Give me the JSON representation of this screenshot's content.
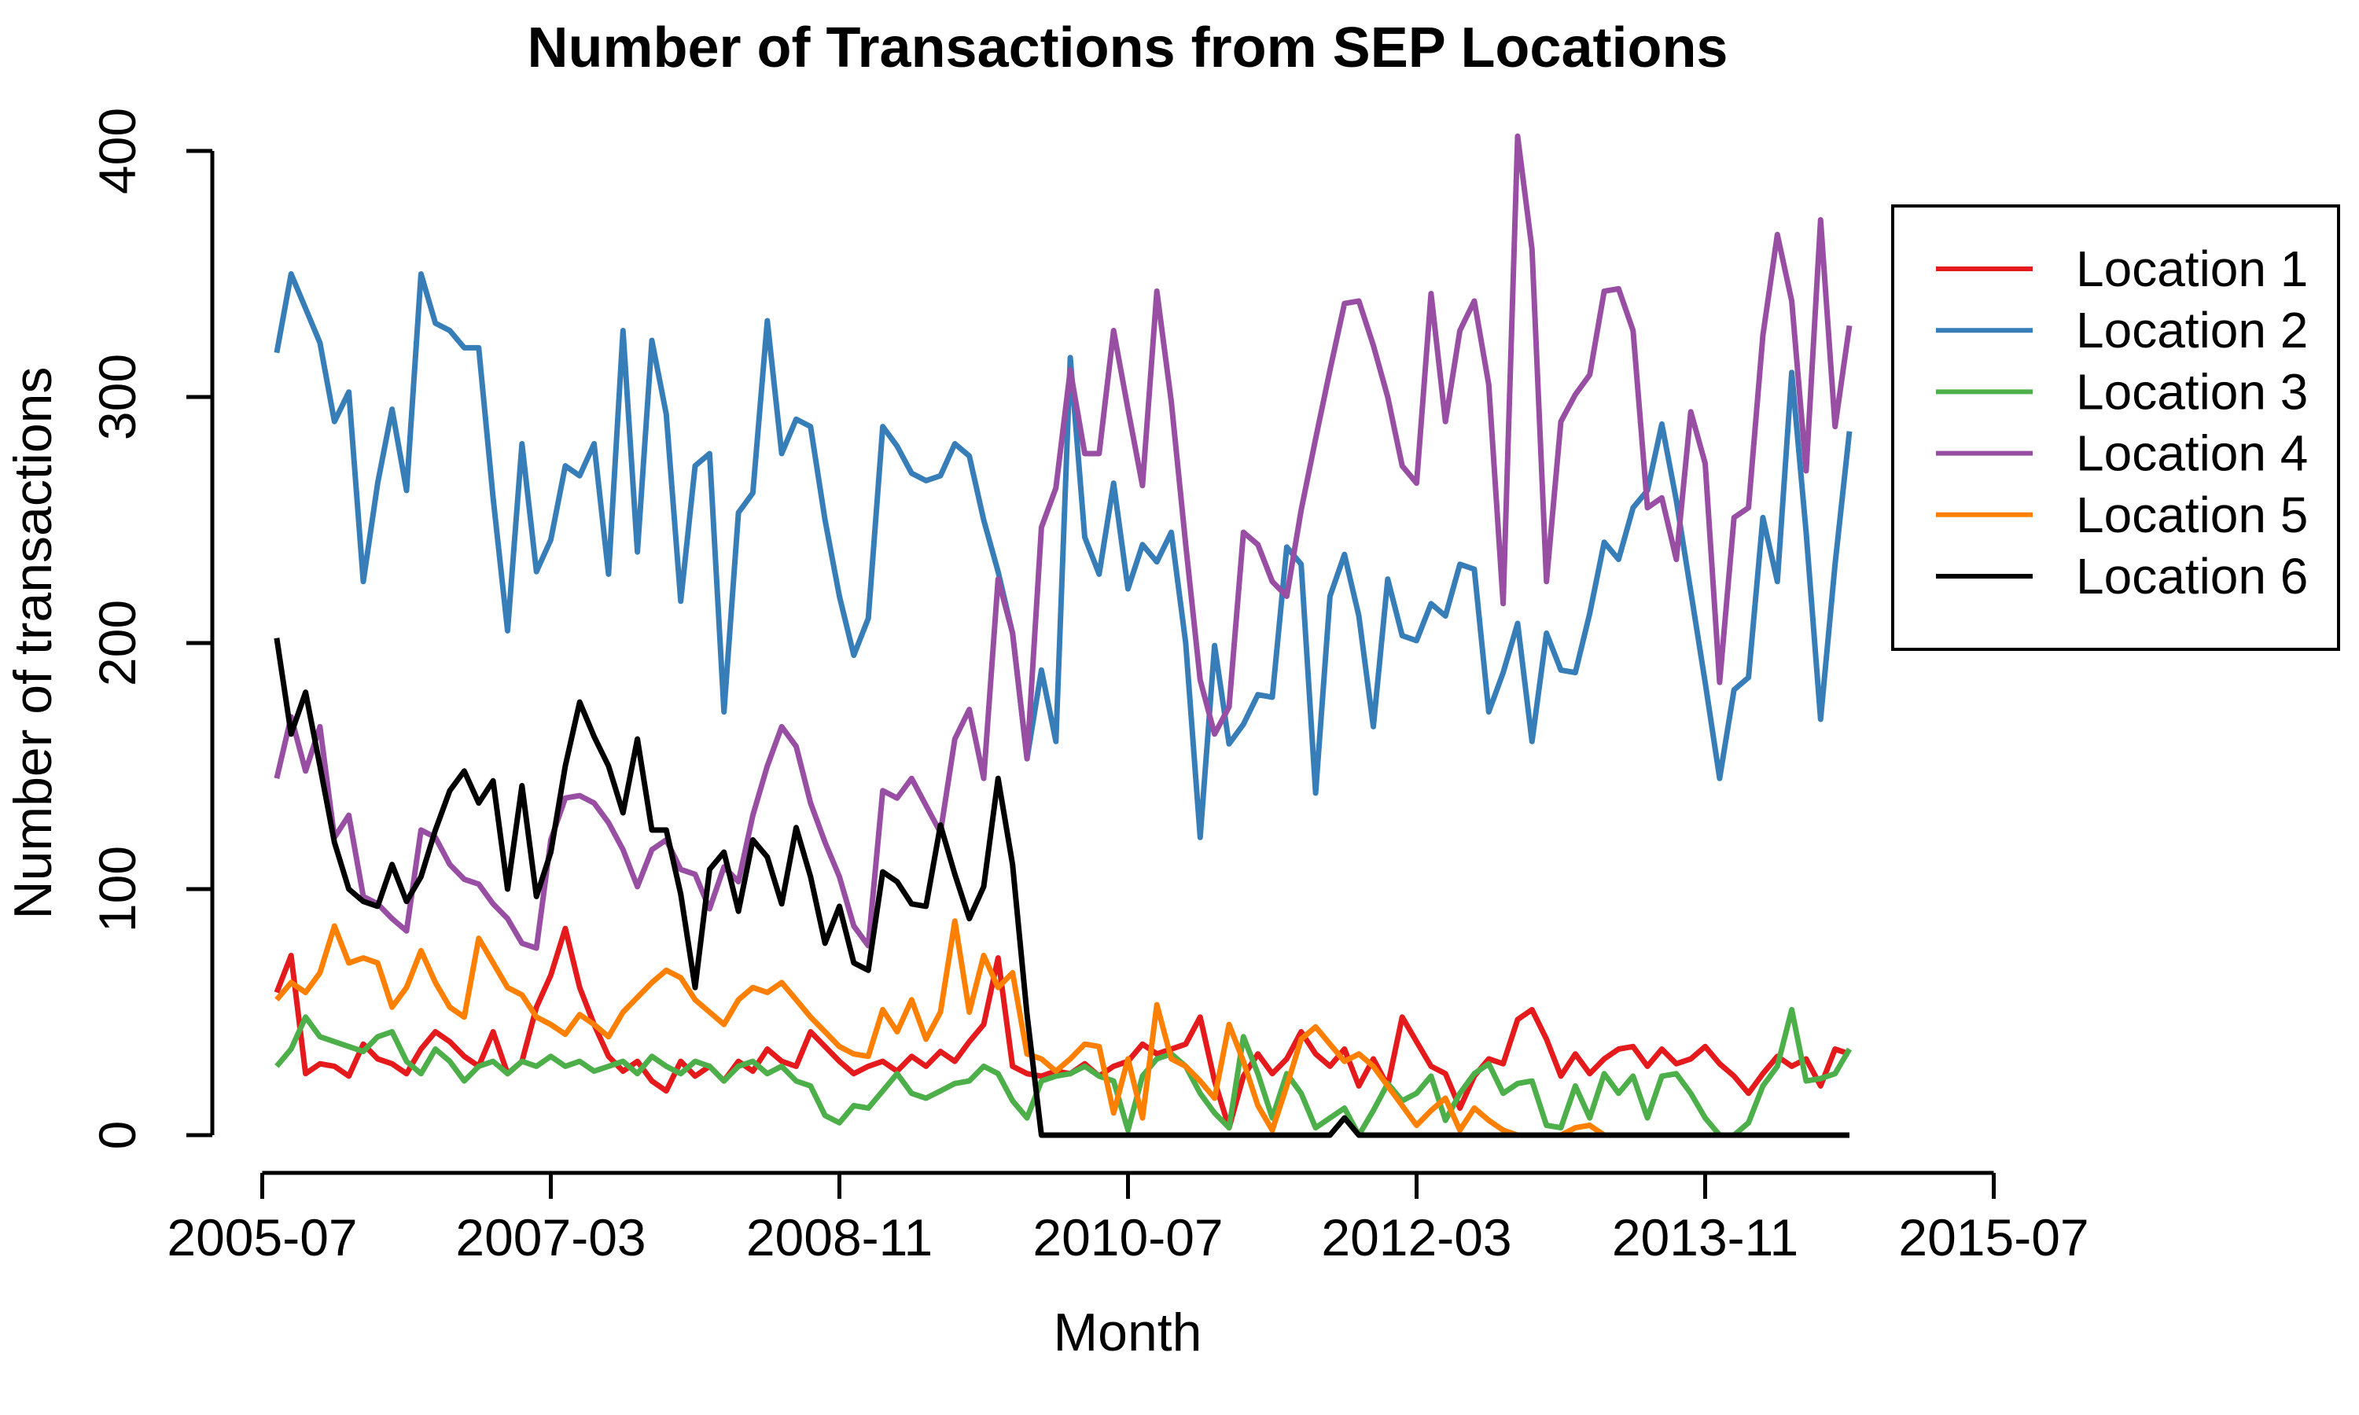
{
  "chart_data": {
    "type": "line",
    "title": "Number of Transactions from SEP Locations",
    "xlabel": "Month",
    "ylabel": "Number of transactions",
    "grid": false,
    "legend_position": "top-right",
    "ylim": [
      0,
      400
    ],
    "y_ticks": [
      0,
      100,
      200,
      300,
      400
    ],
    "x_tick_labels": [
      "2005-07",
      "2007-03",
      "2008-11",
      "2010-07",
      "2012-03",
      "2013-11",
      "2015-07"
    ],
    "x_tick_month_offsets": [
      0,
      20,
      40,
      60,
      80,
      100,
      120
    ],
    "first_point_offset_months": 1,
    "months": [
      "2005-08",
      "2005-09",
      "2005-10",
      "2005-11",
      "2005-12",
      "2006-01",
      "2006-02",
      "2006-03",
      "2006-04",
      "2006-05",
      "2006-06",
      "2006-07",
      "2006-08",
      "2006-09",
      "2006-10",
      "2006-11",
      "2006-12",
      "2007-01",
      "2007-02",
      "2007-03",
      "2007-04",
      "2007-05",
      "2007-06",
      "2007-07",
      "2007-08",
      "2007-09",
      "2007-10",
      "2007-11",
      "2007-12",
      "2008-01",
      "2008-02",
      "2008-03",
      "2008-04",
      "2008-05",
      "2008-06",
      "2008-07",
      "2008-08",
      "2008-09",
      "2008-10",
      "2008-11",
      "2008-12",
      "2009-01",
      "2009-02",
      "2009-03",
      "2009-04",
      "2009-05",
      "2009-06",
      "2009-07",
      "2009-08",
      "2009-09",
      "2009-10",
      "2009-11",
      "2009-12",
      "2010-01",
      "2010-02",
      "2010-03",
      "2010-04",
      "2010-05",
      "2010-06",
      "2010-07",
      "2010-08",
      "2010-09",
      "2010-10",
      "2010-11",
      "2010-12",
      "2011-01",
      "2011-02",
      "2011-03",
      "2011-04",
      "2011-05",
      "2011-06",
      "2011-07",
      "2011-08",
      "2011-09",
      "2011-10",
      "2011-11",
      "2011-12",
      "2012-01",
      "2012-02",
      "2012-03",
      "2012-04",
      "2012-05",
      "2012-06",
      "2012-07",
      "2012-08",
      "2012-09",
      "2012-10",
      "2012-11",
      "2012-12",
      "2013-01",
      "2013-02",
      "2013-03",
      "2013-04",
      "2013-05",
      "2013-06",
      "2013-07",
      "2013-08",
      "2013-09",
      "2013-10",
      "2013-11",
      "2013-12",
      "2014-01",
      "2014-02",
      "2014-03",
      "2014-04",
      "2014-05",
      "2014-06",
      "2014-07",
      "2014-08",
      "2014-09"
    ],
    "series": [
      {
        "name": "Location 1",
        "color": "#E41A1C",
        "values": [
          58,
          73,
          25,
          29,
          28,
          24,
          37,
          31,
          29,
          25,
          35,
          42,
          38,
          32,
          28,
          42,
          25,
          30,
          52,
          65,
          84,
          60,
          45,
          32,
          26,
          30,
          22,
          18,
          30,
          24,
          28,
          22,
          30,
          26,
          35,
          30,
          28,
          42,
          36,
          30,
          25,
          28,
          30,
          26,
          32,
          28,
          34,
          30,
          38,
          45,
          72,
          28,
          25,
          24,
          26,
          25,
          29,
          24,
          28,
          30,
          37,
          33,
          35,
          37,
          48,
          22,
          3,
          24,
          33,
          25,
          31,
          42,
          33,
          28,
          35,
          20,
          31,
          20,
          48,
          38,
          28,
          25,
          11,
          24,
          31,
          29,
          47,
          51,
          39,
          24,
          33,
          25,
          31,
          35,
          36,
          28,
          35,
          29,
          31,
          36,
          29,
          24,
          17,
          25,
          32,
          28,
          31,
          20,
          35,
          33
        ]
      },
      {
        "name": "Location 2",
        "color": "#377EB8",
        "values": [
          318,
          350,
          336,
          322,
          290,
          302,
          225,
          265,
          295,
          262,
          350,
          330,
          327,
          320,
          320,
          259,
          205,
          281,
          229,
          242,
          272,
          268,
          281,
          228,
          327,
          237,
          323,
          293,
          217,
          272,
          277,
          172,
          253,
          261,
          331,
          277,
          291,
          288,
          250,
          219,
          195,
          210,
          288,
          280,
          269,
          266,
          268,
          281,
          276,
          250,
          229,
          204,
          153,
          189,
          160,
          316,
          243,
          228,
          265,
          222,
          240,
          233,
          245,
          200,
          121,
          199,
          159,
          167,
          179,
          178,
          239,
          232,
          139,
          219,
          236,
          211,
          166,
          226,
          203,
          201,
          216,
          211,
          232,
          230,
          172,
          188,
          208,
          160,
          204,
          189,
          188,
          212,
          241,
          234,
          255,
          262,
          289,
          258,
          221,
          184,
          145,
          181,
          186,
          251,
          225,
          310,
          245,
          169,
          232,
          286
        ]
      },
      {
        "name": "Location 3",
        "color": "#4DAF4A",
        "values": [
          28,
          35,
          48,
          40,
          38,
          36,
          34,
          40,
          42,
          30,
          25,
          35,
          30,
          22,
          28,
          30,
          25,
          30,
          28,
          32,
          28,
          30,
          26,
          28,
          30,
          25,
          32,
          28,
          25,
          30,
          28,
          22,
          28,
          30,
          25,
          28,
          22,
          20,
          8,
          5,
          12,
          11,
          18,
          25,
          17,
          15,
          18,
          21,
          22,
          28,
          25,
          14,
          7,
          22,
          24,
          25,
          28,
          24,
          22,
          2,
          24,
          31,
          33,
          28,
          17,
          9,
          3,
          40,
          25,
          7,
          25,
          17,
          3,
          7,
          11,
          0,
          10,
          21,
          14,
          17,
          24,
          6,
          17,
          25,
          29,
          17,
          21,
          22,
          4,
          3,
          20,
          7,
          25,
          17,
          24,
          7,
          24,
          25,
          17,
          7,
          0,
          0,
          5,
          20,
          28,
          51,
          22,
          23,
          25,
          35
        ]
      },
      {
        "name": "Location 4",
        "color": "#984EA3",
        "values": [
          145,
          170,
          148,
          166,
          121,
          130,
          97,
          94,
          88,
          83,
          124,
          121,
          110,
          104,
          102,
          94,
          88,
          78,
          76,
          120,
          137,
          138,
          135,
          127,
          116,
          101,
          116,
          120,
          108,
          106,
          92,
          109,
          103,
          130,
          150,
          166,
          158,
          135,
          119,
          105,
          85,
          77,
          140,
          137,
          145,
          134,
          123,
          161,
          173,
          145,
          226,
          204,
          153,
          247,
          263,
          311,
          277,
          277,
          327,
          295,
          264,
          343,
          298,
          240,
          185,
          163,
          174,
          245,
          240,
          225,
          219,
          254,
          283,
          311,
          338,
          339,
          321,
          300,
          272,
          265,
          342,
          290,
          327,
          339,
          305,
          216,
          406,
          360,
          225,
          290,
          301,
          309,
          343,
          344,
          327,
          255,
          259,
          234,
          294,
          273,
          184,
          251,
          255,
          325,
          366,
          339,
          270,
          372,
          288,
          329
        ]
      },
      {
        "name": "Location 5",
        "color": "#FF7F00",
        "values": [
          55,
          62,
          58,
          66,
          85,
          70,
          72,
          70,
          52,
          60,
          75,
          62,
          52,
          48,
          80,
          70,
          60,
          57,
          48,
          45,
          41,
          49,
          45,
          40,
          50,
          56,
          62,
          67,
          64,
          55,
          50,
          45,
          55,
          60,
          58,
          62,
          55,
          48,
          42,
          36,
          33,
          32,
          51,
          42,
          55,
          39,
          50,
          87,
          50,
          73,
          60,
          66,
          33,
          31,
          26,
          31,
          37,
          36,
          9,
          31,
          7,
          53,
          31,
          28,
          22,
          15,
          45,
          30,
          12,
          2,
          20,
          39,
          44,
          37,
          30,
          33,
          28,
          20,
          12,
          4,
          10,
          15,
          2,
          11,
          6,
          2,
          0,
          0,
          0,
          0,
          3,
          4,
          0,
          0,
          0,
          0,
          0,
          0,
          0,
          0,
          0,
          0,
          0,
          0,
          0,
          0,
          0,
          0,
          0,
          0
        ]
      },
      {
        "name": "Location 6",
        "color": "#000000",
        "values": [
          202,
          163,
          180,
          150,
          119,
          100,
          95,
          93,
          110,
          95,
          105,
          124,
          140,
          148,
          135,
          144,
          100,
          142,
          97,
          115,
          150,
          176,
          162,
          150,
          131,
          161,
          124,
          124,
          98,
          60,
          108,
          115,
          91,
          120,
          113,
          94,
          125,
          105,
          78,
          93,
          70,
          67,
          107,
          103,
          94,
          93,
          126,
          106,
          88,
          101,
          145,
          110,
          49,
          0,
          0,
          0,
          0,
          0,
          0,
          0,
          0,
          0,
          0,
          0,
          0,
          0,
          0,
          0,
          0,
          0,
          0,
          0,
          0,
          0,
          7,
          0,
          0,
          0,
          0,
          0,
          0,
          0,
          0,
          0,
          0,
          0,
          0,
          0,
          0,
          0,
          0,
          0,
          0,
          0,
          0,
          0,
          0,
          0,
          0,
          0,
          0,
          0,
          0,
          0,
          0,
          0,
          0,
          0,
          0,
          0
        ]
      }
    ]
  }
}
